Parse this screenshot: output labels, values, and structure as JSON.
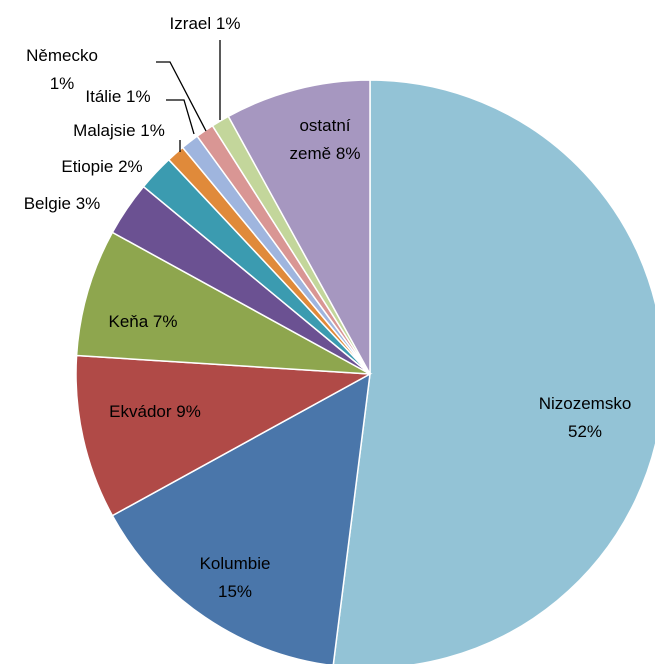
{
  "chart_data": {
    "type": "pie",
    "categories": [
      "Nizozemsko",
      "Kolumbie",
      "Ekvádor",
      "Keňa",
      "Belgie",
      "Etiopie",
      "Malajsie",
      "Itálie",
      "Německo",
      "Izrael",
      "ostatní země"
    ],
    "values": [
      52,
      15,
      9,
      7,
      3,
      2,
      1,
      1,
      1,
      1,
      8
    ],
    "value_labels": [
      "52%",
      "15%",
      "9%",
      "7%",
      "3%",
      "2%",
      "1%",
      "1%",
      "1%",
      "1%",
      "8%"
    ],
    "colors": [
      "#93c3d6",
      "#4a76aa",
      "#b04a47",
      "#8ea64e",
      "#6b5192",
      "#3b9bb0",
      "#e08a3a",
      "#9fb5de",
      "#d99694",
      "#c3d69b",
      "#a697c0"
    ]
  }
}
